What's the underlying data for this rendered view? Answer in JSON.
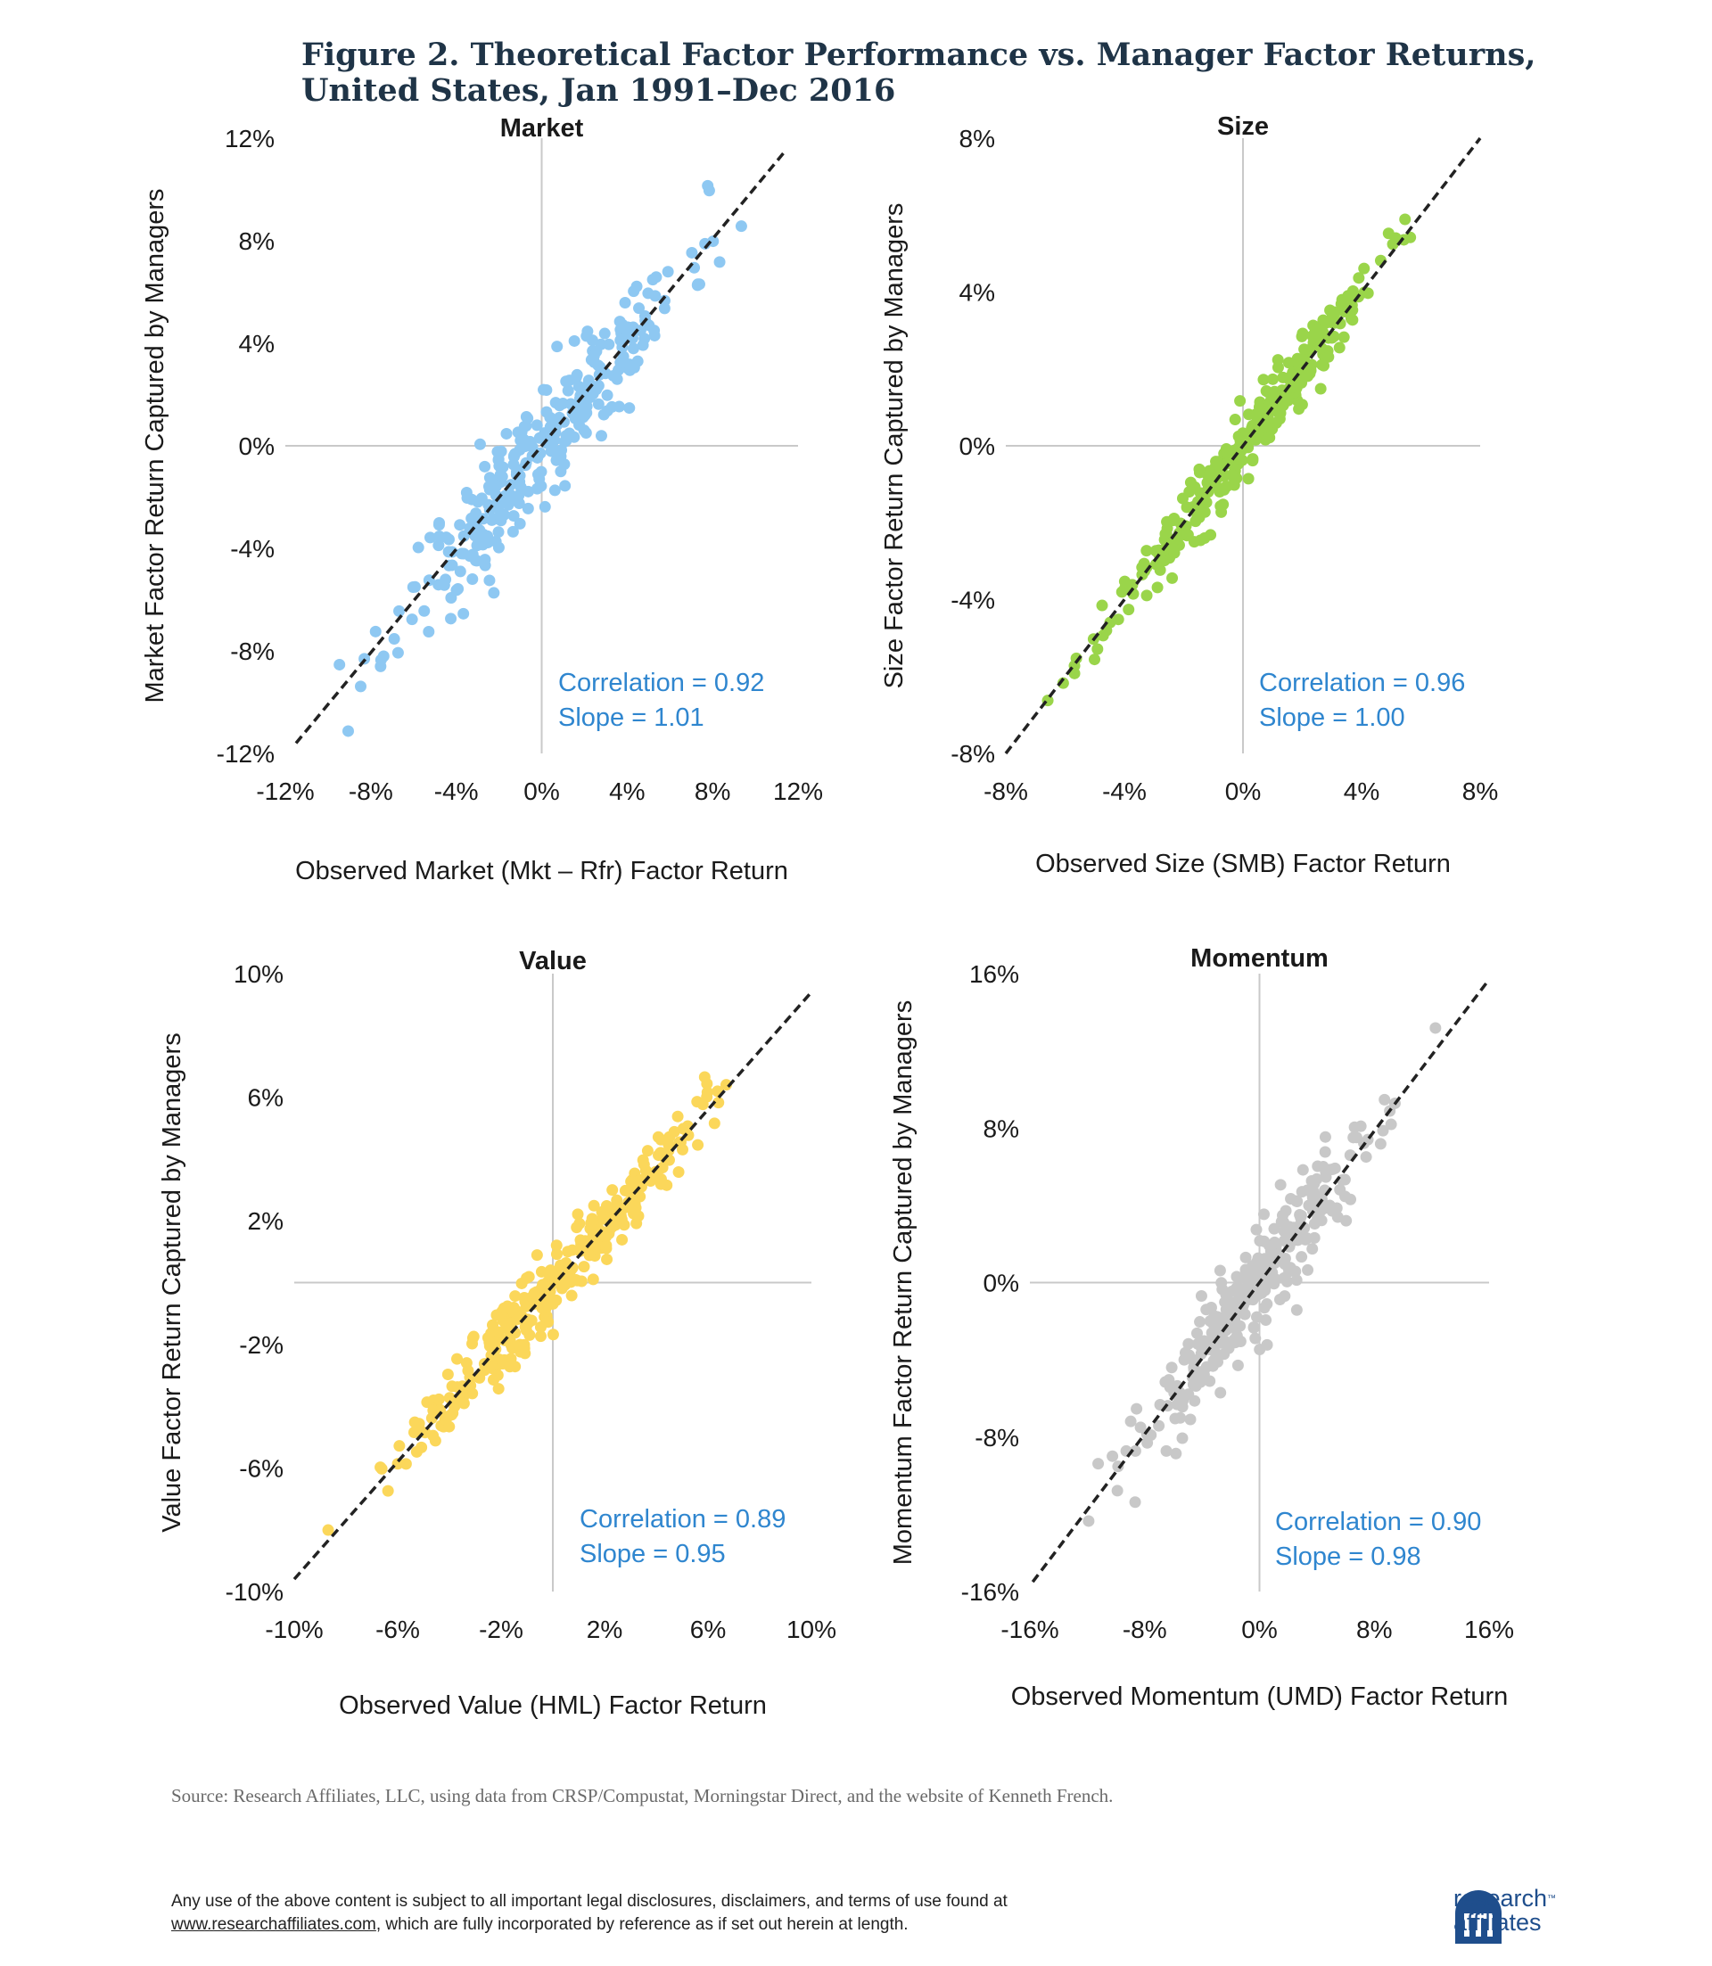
{
  "figure_title_line1": "Figure 2. Theoretical Factor Performance vs. Manager Factor Returns,",
  "figure_title_line2": "United States, Jan 1991–Dec 2016",
  "source_note": "Source: Research Affiliates, LLC, using data from CRSP/Compustat, Morningstar Direct, and the website of Kenneth French.",
  "disclaimer_line1": "Any use of the above content is subject to all important legal disclosures, disclaimers, and terms of use found at",
  "disclaimer_link": "www.researchaffiliates.com",
  "disclaimer_line2_rest": ", which are fully incorporated by reference as if set out herein at length.",
  "logo": {
    "line1": "research",
    "tm": "™",
    "line2": "affiliates",
    "mark_color": "#1f4e8c",
    "icon": "research-affiliates-logo-icon"
  },
  "chart_data": [
    {
      "type": "scatter",
      "title": "Market",
      "xlabel": "Observed Market (Mkt – Rfr) Factor Return",
      "ylabel": "Market Factor Return Captured by Managers",
      "xlim": [
        -12,
        12
      ],
      "ylim": [
        -12,
        12
      ],
      "xticks": [
        -12,
        -8,
        -4,
        0,
        4,
        8,
        12
      ],
      "yticks": [
        -12,
        -8,
        -4,
        0,
        4,
        8,
        12
      ],
      "xtick_labels": [
        "-12%",
        "-8%",
        "-4%",
        "0%",
        "4%",
        "8%",
        "12%"
      ],
      "ytick_labels": [
        "-12%",
        "-8%",
        "-4%",
        "0%",
        "4%",
        "8%",
        "12%"
      ],
      "color": "#8ec8f2",
      "n_points": 312,
      "seed": 11,
      "noise": 2.1,
      "correlation": 0.92,
      "slope": 1.01,
      "correlation_text": "Correlation = 0.92",
      "slope_text": "Slope = 1.01",
      "fit_line": [
        [
          -11.5,
          -11.6
        ],
        [
          11.4,
          11.5
        ]
      ]
    },
    {
      "type": "scatter",
      "title": "Size",
      "xlabel": "Observed Size (SMB) Factor Return",
      "ylabel": "Size Factor Return Captured by Managers",
      "xlim": [
        -8,
        8
      ],
      "ylim": [
        -8,
        8
      ],
      "xticks": [
        -8,
        -4,
        0,
        4,
        8
      ],
      "yticks": [
        -8,
        -4,
        0,
        4,
        8
      ],
      "xtick_labels": [
        "-8%",
        "-4%",
        "0%",
        "4%",
        "8%"
      ],
      "ytick_labels": [
        "-8%",
        "-4%",
        "0%",
        "4%",
        "8%"
      ],
      "color": "#9ad54a",
      "n_points": 312,
      "seed": 23,
      "noise": 0.75,
      "correlation": 0.96,
      "slope": 1.0,
      "correlation_text": "Correlation = 0.96",
      "slope_text": "Slope = 1.00",
      "fit_line": [
        [
          -8,
          -8
        ],
        [
          8,
          8
        ]
      ]
    },
    {
      "type": "scatter",
      "title": "Value",
      "xlabel": "Observed Value (HML) Factor Return",
      "ylabel": "Value Factor Return Captured by Managers",
      "xlim": [
        -10,
        10
      ],
      "ylim": [
        -10,
        10
      ],
      "xticks": [
        -10,
        -6,
        -2,
        2,
        6,
        10
      ],
      "yticks": [
        -10,
        -6,
        -2,
        2,
        6,
        10
      ],
      "xtick_labels": [
        "-10%",
        "-6%",
        "-2%",
        "2%",
        "6%",
        "10%"
      ],
      "ytick_labels": [
        "-10%",
        "-6%",
        "-2%",
        "2%",
        "6%",
        "10%"
      ],
      "color": "#fbd75a",
      "n_points": 312,
      "seed": 37,
      "noise": 1.1,
      "correlation": 0.89,
      "slope": 0.95,
      "correlation_text": "Correlation = 0.89",
      "slope_text": "Slope = 0.95",
      "fit_line": [
        [
          -10,
          -9.6
        ],
        [
          10,
          9.4
        ]
      ]
    },
    {
      "type": "scatter",
      "title": "Momentum",
      "xlabel": "Observed Momentum (UMD) Factor Return",
      "ylabel": "Momentum Factor Return Captured by Managers",
      "xlim": [
        -16,
        16
      ],
      "ylim": [
        -16,
        16
      ],
      "xticks": [
        -16,
        -8,
        0,
        8,
        16
      ],
      "yticks": [
        -16,
        -8,
        0,
        8,
        16
      ],
      "xtick_labels": [
        "-16%",
        "-8%",
        "0%",
        "8%",
        "16%"
      ],
      "ytick_labels": [
        "-16%",
        "-8%",
        "0%",
        "8%",
        "16%"
      ],
      "color": "#c8c8c8",
      "n_points": 312,
      "seed": 53,
      "noise": 2.4,
      "correlation": 0.9,
      "slope": 0.98,
      "correlation_text": "Correlation = 0.90",
      "slope_text": "Slope = 0.98",
      "fit_line": [
        [
          -15.8,
          -15.5
        ],
        [
          15.8,
          15.5
        ]
      ]
    }
  ]
}
